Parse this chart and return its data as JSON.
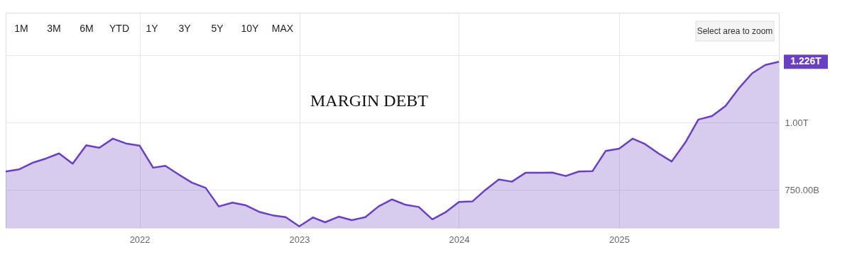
{
  "chart_data": {
    "type": "area",
    "title": "MARGIN DEBT",
    "x": [
      "2021-03",
      "2021-04",
      "2021-05",
      "2021-06",
      "2021-07",
      "2021-08",
      "2021-09",
      "2021-10",
      "2021-11",
      "2021-12",
      "2022-01",
      "2022-02",
      "2022-03",
      "2022-04",
      "2022-05",
      "2022-06",
      "2022-07",
      "2022-08",
      "2022-09",
      "2022-10",
      "2022-11",
      "2022-12",
      "2023-01",
      "2023-02",
      "2023-03",
      "2023-04",
      "2023-05",
      "2023-06",
      "2023-07",
      "2023-08",
      "2023-09",
      "2023-10",
      "2023-11",
      "2023-12",
      "2024-01",
      "2024-02",
      "2024-03",
      "2024-04",
      "2024-05",
      "2024-06",
      "2024-07",
      "2024-08",
      "2024-09",
      "2024-10",
      "2024-11",
      "2024-12",
      "2025-01",
      "2025-02",
      "2025-03",
      "2025-04",
      "2025-05",
      "2025-06",
      "2025-07",
      "2025-08",
      "2025-09",
      "2025-10",
      "2025-11",
      "2025-12",
      "2026-01"
    ],
    "series": [
      {
        "color": "#6a3fc2",
        "values": [
          818000000000,
          826000000000,
          850000000000,
          866000000000,
          885000000000,
          847000000000,
          915000000000,
          906000000000,
          940000000000,
          922000000000,
          914000000000,
          832000000000,
          839000000000,
          806000000000,
          776000000000,
          757000000000,
          688000000000,
          702000000000,
          692000000000,
          668000000000,
          655000000000,
          648000000000,
          614000000000,
          647000000000,
          629000000000,
          650000000000,
          637000000000,
          648000000000,
          688000000000,
          714000000000,
          694000000000,
          686000000000,
          640000000000,
          666000000000,
          705000000000,
          707000000000,
          749000000000,
          788000000000,
          780000000000,
          813000000000,
          813000000000,
          814000000000,
          801000000000,
          818000000000,
          819000000000,
          894000000000,
          903000000000,
          940000000000,
          920000000000,
          885000000000,
          855000000000,
          925000000000,
          1011000000000,
          1024000000000,
          1061000000000,
          1126000000000,
          1183000000000,
          1214000000000,
          1226000000000
        ]
      }
    ],
    "xlim": [
      "2021-03",
      "2026-01"
    ],
    "xticks": [
      "2022",
      "2023",
      "2024",
      "2025"
    ],
    "ylim": [
      608000000000,
      1408000000000
    ],
    "yticks": [
      {
        "value": 750000000000,
        "label": "750.00B"
      },
      {
        "value": 1000000000000,
        "label": "1.00T"
      },
      {
        "value": 1250000000000,
        "label": null
      }
    ],
    "grid": true,
    "annotations": [
      {
        "text": "1.226T",
        "x": "2026-01",
        "y": 1226000000000
      },
      "1M",
      "3M",
      "6M",
      "YTD",
      "1Y",
      "3Y",
      "5Y",
      "10Y",
      "MAX",
      "Select area to zoom"
    ]
  }
}
